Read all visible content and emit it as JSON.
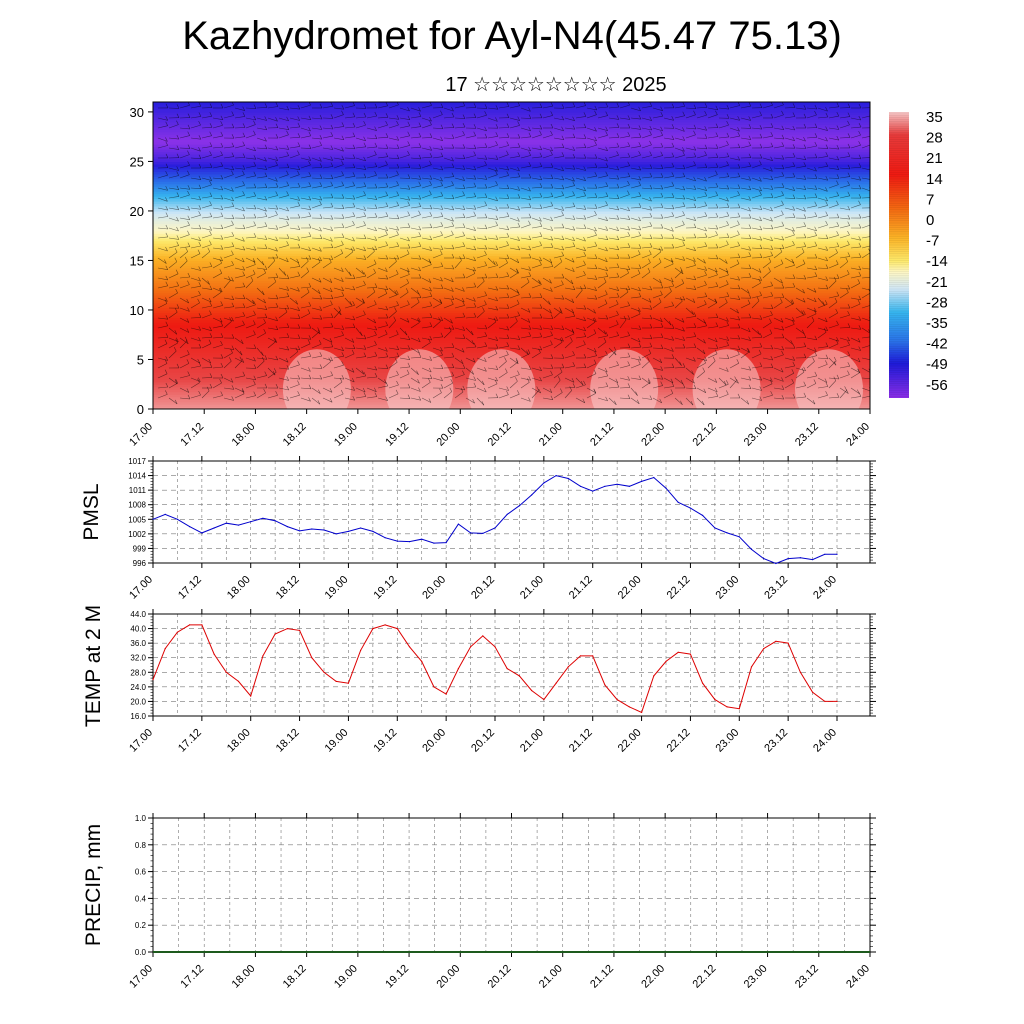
{
  "title": "Kazhydromet for Ayl-N4(45.47 75.13)",
  "subtitle": "17 ☆☆☆☆☆☆☆☆ 2025",
  "time_ticks": [
    "17.00",
    "17.12",
    "18.00",
    "18.12",
    "19.00",
    "19.12",
    "20.00",
    "20.12",
    "21.00",
    "21.12",
    "22.00",
    "22.12",
    "23.00",
    "23.12",
    "24.00"
  ],
  "chart_data": [
    {
      "type": "heatmap",
      "title": "",
      "xlabel": "",
      "ylabel": "",
      "x": [
        "17.00",
        "17.12",
        "18.00",
        "18.12",
        "19.00",
        "19.12",
        "20.00",
        "20.12",
        "21.00",
        "21.12",
        "22.00",
        "22.12",
        "23.00",
        "23.12",
        "24.00"
      ],
      "ylim": [
        0,
        31
      ],
      "yticks": [
        0,
        5,
        10,
        15,
        20,
        25,
        30
      ],
      "colorbar": {
        "labels": [
          "35",
          "28",
          "21",
          "14",
          "7",
          "0",
          "-7",
          "-14",
          "-21",
          "-28",
          "-35",
          "-42",
          "-49",
          "-56"
        ],
        "range": [
          -60,
          38
        ]
      },
      "overlay": "wind barbs",
      "temperature_profile": {
        "levels": [
          0,
          3,
          6,
          9,
          12,
          15,
          17,
          19,
          21,
          23,
          25,
          27,
          29,
          31
        ],
        "values": [
          33,
          28,
          22,
          17,
          8,
          -2,
          -10,
          -20,
          -32,
          -44,
          -54,
          -60,
          -56,
          -52
        ]
      },
      "surface_warm_peaks": [
        18.6,
        19.6,
        20.4,
        21.6,
        22.6,
        23.6
      ]
    },
    {
      "type": "line",
      "title": "",
      "xlabel": "",
      "ylabel": "PMSL",
      "ylim": [
        996,
        1017
      ],
      "yticks": [
        "996",
        "999",
        "1002",
        "1005",
        "1008",
        "1011",
        "1014",
        "1017"
      ],
      "grid": true,
      "color": "#0000cc",
      "x": [
        17.0,
        17.125,
        17.25,
        17.375,
        17.5,
        17.625,
        17.75,
        17.875,
        18.0,
        18.125,
        18.25,
        18.375,
        18.5,
        18.625,
        18.75,
        18.875,
        19.0,
        19.125,
        19.25,
        19.375,
        19.5,
        19.625,
        19.75,
        19.875,
        20.0,
        20.125,
        20.25,
        20.375,
        20.5,
        20.625,
        20.75,
        20.875,
        21.0,
        21.125,
        21.25,
        21.375,
        21.5,
        21.625,
        21.75,
        21.875,
        22.0,
        22.125,
        22.25,
        22.375,
        22.5,
        22.625,
        22.75,
        22.875,
        23.0,
        23.125,
        23.25,
        23.375,
        23.5,
        23.625,
        23.75,
        23.875,
        24.0
      ],
      "values": [
        1005,
        1006,
        1005,
        1003.5,
        1002.2,
        1003.2,
        1004.2,
        1003.8,
        1004.5,
        1005.2,
        1004.7,
        1003.5,
        1002.6,
        1003.0,
        1002.8,
        1002.0,
        1002.5,
        1003.2,
        1002.5,
        1001.2,
        1000.5,
        1000.4,
        1000.9,
        1000.1,
        1000.2,
        1004.0,
        1002.2,
        1002.1,
        1003.2,
        1006.0,
        1007.8,
        1010.0,
        1012.5,
        1014.0,
        1013.4,
        1011.8,
        1010.8,
        1011.8,
        1012.2,
        1011.8,
        1012.8,
        1013.6,
        1011.4,
        1008.5,
        1007.3,
        1005.8,
        1003.2,
        1002.2,
        1001.4,
        998.8,
        996.9,
        995.9,
        996.9,
        997.1,
        996.7,
        997.8,
        997.8
      ]
    },
    {
      "type": "line",
      "title": "",
      "xlabel": "",
      "ylabel": "TEMP at 2 M",
      "ylim": [
        16,
        44
      ],
      "yticks": [
        "16.0",
        "20.0",
        "24.0",
        "28.0",
        "32.0",
        "36.0",
        "40.0",
        "44.0"
      ],
      "grid": true,
      "color": "#dd0000",
      "x": [
        17.0,
        17.125,
        17.25,
        17.375,
        17.5,
        17.625,
        17.75,
        17.875,
        18.0,
        18.125,
        18.25,
        18.375,
        18.5,
        18.625,
        18.75,
        18.875,
        19.0,
        19.125,
        19.25,
        19.375,
        19.5,
        19.625,
        19.75,
        19.875,
        20.0,
        20.125,
        20.25,
        20.375,
        20.5,
        20.625,
        20.75,
        20.875,
        21.0,
        21.125,
        21.25,
        21.375,
        21.5,
        21.625,
        21.75,
        21.875,
        22.0,
        22.125,
        22.25,
        22.375,
        22.5,
        22.625,
        22.75,
        22.875,
        23.0,
        23.125,
        23.25,
        23.375,
        23.5,
        23.625,
        23.75,
        23.875,
        24.0
      ],
      "values": [
        26,
        34.5,
        39,
        41,
        41,
        33,
        28,
        25.5,
        21.5,
        32.5,
        38.5,
        40,
        39.5,
        32,
        28,
        25.5,
        25,
        34,
        40,
        41,
        40,
        35,
        31,
        24,
        22,
        29,
        35,
        38,
        35,
        29,
        27,
        23,
        20.5,
        25,
        29.5,
        32.5,
        32.5,
        24.5,
        20.5,
        18.5,
        17,
        27,
        31,
        33.5,
        33,
        25,
        20.5,
        18.5,
        18,
        29.5,
        34.5,
        36.5,
        36,
        28,
        22.5,
        20,
        20
      ]
    },
    {
      "type": "bar",
      "title": "",
      "xlabel": "",
      "ylabel": "PRECIP, mm",
      "ylim": [
        0,
        1
      ],
      "yticks": [
        "0.0",
        "0.2",
        "0.4",
        "0.6",
        "0.8",
        "1.0"
      ],
      "grid": true,
      "x": [
        17.0,
        17.5,
        18.0,
        18.5,
        19.0,
        19.5,
        20.0,
        20.5,
        21.0,
        21.5,
        22.0,
        22.5,
        23.0,
        23.5
      ],
      "values": [
        0,
        0,
        0,
        0,
        0,
        0,
        0,
        0,
        0,
        0,
        0,
        0,
        0,
        0
      ]
    }
  ]
}
